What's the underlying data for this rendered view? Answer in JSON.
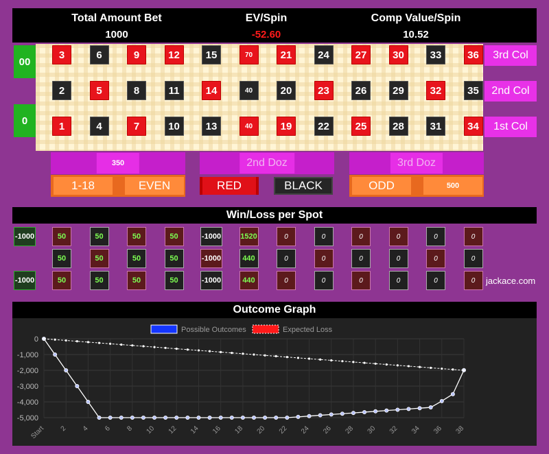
{
  "header": {
    "total_label": "Total Amount Bet",
    "total_value": "1000",
    "ev_label": "EV/Spin",
    "ev_value": "-52.60",
    "comp_label": "Comp Value/Spin",
    "comp_value": "10.52"
  },
  "colors": {
    "red": "#e8141c",
    "black": "#262626",
    "green": "#21b321",
    "win": "#7dff52",
    "ev": "#ff1a1a"
  },
  "zeros": {
    "double_zero": "00",
    "zero": "0"
  },
  "grid": {
    "rows": [
      [
        {
          "n": "3",
          "c": "red"
        },
        {
          "n": "6",
          "c": "black"
        },
        {
          "n": "9",
          "c": "red"
        },
        {
          "n": "12",
          "c": "red"
        },
        {
          "n": "15",
          "c": "black"
        },
        {
          "n": "70",
          "c": "red",
          "bet": true
        },
        {
          "n": "21",
          "c": "red"
        },
        {
          "n": "24",
          "c": "black"
        },
        {
          "n": "27",
          "c": "red"
        },
        {
          "n": "30",
          "c": "red"
        },
        {
          "n": "33",
          "c": "black"
        },
        {
          "n": "36",
          "c": "red"
        }
      ],
      [
        {
          "n": "2",
          "c": "black"
        },
        {
          "n": "5",
          "c": "red"
        },
        {
          "n": "8",
          "c": "black"
        },
        {
          "n": "11",
          "c": "black"
        },
        {
          "n": "14",
          "c": "red"
        },
        {
          "n": "40",
          "c": "black",
          "bet": true
        },
        {
          "n": "20",
          "c": "black"
        },
        {
          "n": "23",
          "c": "red"
        },
        {
          "n": "26",
          "c": "black"
        },
        {
          "n": "29",
          "c": "black"
        },
        {
          "n": "32",
          "c": "red"
        },
        {
          "n": "35",
          "c": "black"
        }
      ],
      [
        {
          "n": "1",
          "c": "red"
        },
        {
          "n": "4",
          "c": "black"
        },
        {
          "n": "7",
          "c": "red"
        },
        {
          "n": "10",
          "c": "black"
        },
        {
          "n": "13",
          "c": "black"
        },
        {
          "n": "40",
          "c": "red",
          "bet": true
        },
        {
          "n": "19",
          "c": "red"
        },
        {
          "n": "22",
          "c": "black"
        },
        {
          "n": "25",
          "c": "red"
        },
        {
          "n": "28",
          "c": "black"
        },
        {
          "n": "31",
          "c": "black"
        },
        {
          "n": "34",
          "c": "red"
        }
      ]
    ],
    "columns": [
      "3rd Col",
      "2nd Col",
      "1st Col"
    ]
  },
  "dozens": [
    "350",
    "2nd Doz",
    "3rd Doz"
  ],
  "outside": [
    "1-18",
    "EVEN",
    "RED",
    "BLACK",
    "ODD",
    "500"
  ],
  "winloss": {
    "title": "Win/Loss per Spot",
    "zeros": [
      "-1000",
      "",
      "-1000"
    ],
    "rows": [
      [
        "50",
        "50",
        "50",
        "50",
        "-1000",
        "1520",
        "0",
        "0",
        "0",
        "0",
        "0",
        "0"
      ],
      [
        "50",
        "50",
        "50",
        "50",
        "-1000",
        "440",
        "0",
        "0",
        "0",
        "0",
        "0",
        "0"
      ],
      [
        "50",
        "50",
        "50",
        "50",
        "-1000",
        "440",
        "0",
        "0",
        "0",
        "0",
        "0",
        "0"
      ]
    ],
    "credit": "jackace.com"
  },
  "graph": {
    "title": "Outcome Graph"
  },
  "chart_data": {
    "type": "line",
    "legend": [
      "Possible Outcomes",
      "Expected Loss"
    ],
    "x": [
      "Start",
      "1",
      "2",
      "3",
      "4",
      "5",
      "6",
      "7",
      "8",
      "9",
      "10",
      "11",
      "12",
      "13",
      "14",
      "15",
      "16",
      "17",
      "18",
      "19",
      "20",
      "21",
      "22",
      "23",
      "24",
      "25",
      "26",
      "27",
      "28",
      "29",
      "30",
      "31",
      "32",
      "33",
      "34",
      "35",
      "36",
      "37",
      "38"
    ],
    "xticks": [
      "Start",
      "2",
      "4",
      "6",
      "8",
      "10",
      "12",
      "14",
      "16",
      "18",
      "20",
      "22",
      "24",
      "26",
      "28",
      "30",
      "32",
      "34",
      "36",
      "38"
    ],
    "series": [
      {
        "name": "Possible Outcomes",
        "values": [
          0,
          -1000,
          -2000,
          -3000,
          -4000,
          -5000,
          -5000,
          -5000,
          -5000,
          -5000,
          -5000,
          -5000,
          -5000,
          -5000,
          -5000,
          -5000,
          -5000,
          -5000,
          -5000,
          -5000,
          -5000,
          -5000,
          -5000,
          -4950,
          -4900,
          -4850,
          -4800,
          -4750,
          -4700,
          -4650,
          -4600,
          -4550,
          -4500,
          -4450,
          -4400,
          -4350,
          -3950,
          -3510,
          -1990
        ]
      },
      {
        "name": "Expected Loss",
        "values": [
          0,
          -52.6,
          -105.2,
          -157.8,
          -210.4,
          -263,
          -315.6,
          -368.2,
          -420.8,
          -473.4,
          -526,
          -578.6,
          -631.2,
          -683.8,
          -736.4,
          -789,
          -841.6,
          -894.2,
          -946.8,
          -999.4,
          -1052,
          -1104.6,
          -1157.2,
          -1209.8,
          -1262.4,
          -1315,
          -1367.6,
          -1420.2,
          -1472.8,
          -1525.4,
          -1578,
          -1630.6,
          -1683.2,
          -1735.8,
          -1788.4,
          -1841,
          -1893.6,
          -1946.2,
          -1998.8
        ]
      }
    ],
    "yticks": [
      "0",
      "-1,000",
      "-2,000",
      "-3,000",
      "-4,000",
      "-5,000"
    ],
    "ylim": [
      -5000,
      0
    ],
    "grid": true,
    "legend_position": "top"
  }
}
